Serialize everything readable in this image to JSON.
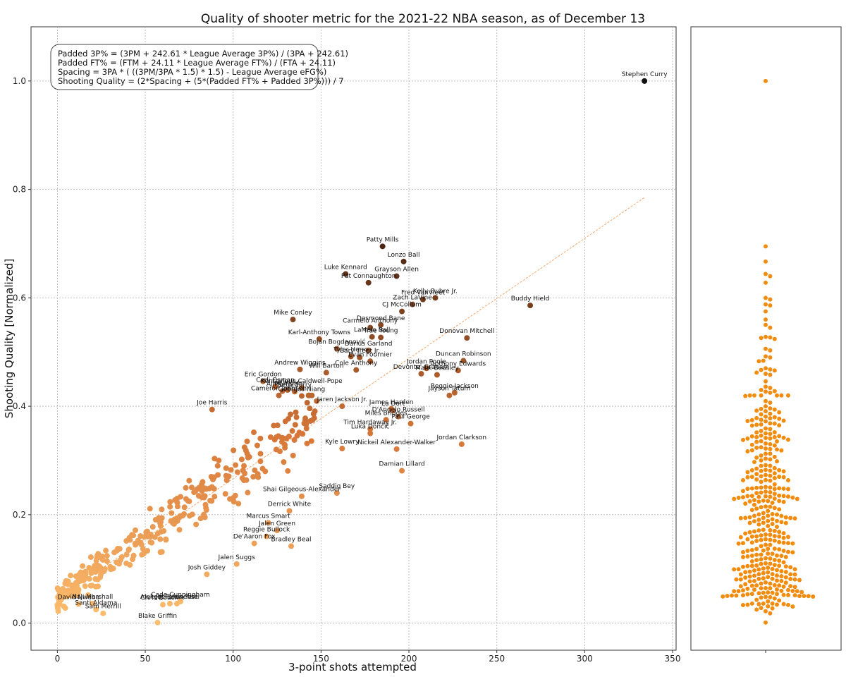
{
  "chart_data": {
    "type": "scatter",
    "title": "Quality of shooter metric for the 2021-22 NBA season, as of December 13",
    "xlabel": "3-point shots attempted",
    "ylabel": "Shooting Quality [Normalized]",
    "xlim": [
      -15,
      352
    ],
    "ylim": [
      -0.05,
      1.1
    ],
    "xticks": [
      "0",
      "50",
      "100",
      "150",
      "200",
      "250",
      "300",
      "350"
    ],
    "yticks": [
      "0.0",
      "0.2",
      "0.4",
      "0.6",
      "0.8",
      "1.0"
    ],
    "grid": true,
    "formulas": [
      "Padded 3P% = (3PM + 242.61 * League Average 3P%) / (3PA + 242.61)",
      "Padded FT% = (FTM + 24.11 * League Average FT%) / (FTA + 24.11)",
      "Spacing = 3PA * ( ((3PM/3PA * 1.5) * 1.5) - League Average eFG%)",
      "Shooting Quality = (2*Spacing + (5*(Padded FT% + Padded 3P%))) / 7"
    ],
    "trend_line": {
      "x": [
        0,
        334
      ],
      "y": [
        0.045,
        0.785
      ]
    },
    "labeled_points": [
      {
        "name": "Stephen Curry",
        "x": 334,
        "y": 1.0
      },
      {
        "name": "Patty Mills",
        "x": 185,
        "y": 0.695
      },
      {
        "name": "Lonzo Ball",
        "x": 197,
        "y": 0.667
      },
      {
        "name": "Luke Kennard",
        "x": 164,
        "y": 0.644
      },
      {
        "name": "Grayson Allen",
        "x": 193,
        "y": 0.64
      },
      {
        "name": "Pat Connaughton",
        "x": 177,
        "y": 0.628
      },
      {
        "name": "Kelly Oubre Jr.",
        "x": 215,
        "y": 0.6
      },
      {
        "name": "Fred VanVleet",
        "x": 208,
        "y": 0.597
      },
      {
        "name": "Zach LaVine",
        "x": 202,
        "y": 0.588
      },
      {
        "name": "CJ McCollum",
        "x": 196,
        "y": 0.575
      },
      {
        "name": "Buddy Hield",
        "x": 269,
        "y": 0.586
      },
      {
        "name": "Mike Conley",
        "x": 134,
        "y": 0.56
      },
      {
        "name": "Desmond Bane",
        "x": 184,
        "y": 0.55
      },
      {
        "name": "Carmelo Anthony",
        "x": 178,
        "y": 0.545
      },
      {
        "name": "Trae Young",
        "x": 184,
        "y": 0.527
      },
      {
        "name": "LaMelo Ball",
        "x": 179,
        "y": 0.528
      },
      {
        "name": "Karl-Anthony Towns",
        "x": 149,
        "y": 0.524
      },
      {
        "name": "Donovan Mitchell",
        "x": 233,
        "y": 0.526
      },
      {
        "name": "Bojan Bogdanović",
        "x": 159,
        "y": 0.506
      },
      {
        "name": "Darius Garland",
        "x": 177,
        "y": 0.503
      },
      {
        "name": "Tyler Herro",
        "x": 167,
        "y": 0.492
      },
      {
        "name": "Gary Trent Jr.",
        "x": 172,
        "y": 0.49
      },
      {
        "name": "Evan Fournier",
        "x": 178,
        "y": 0.483
      },
      {
        "name": "Duncan Robinson",
        "x": 231,
        "y": 0.484
      },
      {
        "name": "Jordan Poole",
        "x": 210,
        "y": 0.47
      },
      {
        "name": "Anthony Edwards",
        "x": 228,
        "y": 0.466
      },
      {
        "name": "Devonte' Graham",
        "x": 207,
        "y": 0.46
      },
      {
        "name": "Malik Beasley",
        "x": 216,
        "y": 0.458
      },
      {
        "name": "Andrew Wiggins",
        "x": 138,
        "y": 0.468
      },
      {
        "name": "Will Barton",
        "x": 153,
        "y": 0.462
      },
      {
        "name": "Cole Anthony",
        "x": 170,
        "y": 0.467
      },
      {
        "name": "Eric Gordon",
        "x": 117,
        "y": 0.446
      },
      {
        "name": "Cedi Osman",
        "x": 124,
        "y": 0.436
      },
      {
        "name": "Kentavious Caldwell-Pope",
        "x": 139,
        "y": 0.434
      },
      {
        "name": "Al Horford",
        "x": 128,
        "y": 0.428
      },
      {
        "name": "Joe Ingles",
        "x": 131,
        "y": 0.43
      },
      {
        "name": "Seth Curry",
        "x": 135,
        "y": 0.427
      },
      {
        "name": "Cameron Johnson",
        "x": 126,
        "y": 0.42
      },
      {
        "name": "Georges Niang",
        "x": 139,
        "y": 0.419
      },
      {
        "name": "Reggie Jackson",
        "x": 226,
        "y": 0.425
      },
      {
        "name": "Jayson Tatum",
        "x": 223,
        "y": 0.42
      },
      {
        "name": "Joe Harris",
        "x": 88,
        "y": 0.394
      },
      {
        "name": "Jaren Jackson Jr.",
        "x": 162,
        "y": 0.4
      },
      {
        "name": "James Harden",
        "x": 190,
        "y": 0.395
      },
      {
        "name": "Lu Dort",
        "x": 191,
        "y": 0.392
      },
      {
        "name": "D'Angelo Russell",
        "x": 194,
        "y": 0.381
      },
      {
        "name": "Miles Bridges",
        "x": 187,
        "y": 0.375
      },
      {
        "name": "Paul George",
        "x": 201,
        "y": 0.368
      },
      {
        "name": "Tim Hardaway Jr.",
        "x": 178,
        "y": 0.358
      },
      {
        "name": "Luka Dončić",
        "x": 178,
        "y": 0.35
      },
      {
        "name": "Jordan Clarkson",
        "x": 230,
        "y": 0.33
      },
      {
        "name": "Kyle Lowry",
        "x": 162,
        "y": 0.322
      },
      {
        "name": "Nickeil Alexander-Walker",
        "x": 193,
        "y": 0.321
      },
      {
        "name": "Damian Lillard",
        "x": 196,
        "y": 0.281
      },
      {
        "name": "Saddiq Bey",
        "x": 159,
        "y": 0.24
      },
      {
        "name": "Shai Gilgeous-Alexander",
        "x": 139,
        "y": 0.234
      },
      {
        "name": "Derrick White",
        "x": 132,
        "y": 0.207
      },
      {
        "name": "Marcus Smart",
        "x": 120,
        "y": 0.185
      },
      {
        "name": "Jalen Green",
        "x": 125,
        "y": 0.171
      },
      {
        "name": "Reggie Bullock",
        "x": 119,
        "y": 0.16
      },
      {
        "name": "De'Aaron Fox",
        "x": 112,
        "y": 0.147
      },
      {
        "name": "Bradley Beal",
        "x": 133,
        "y": 0.142
      },
      {
        "name": "Jalen Suggs",
        "x": 102,
        "y": 0.109
      },
      {
        "name": "Josh Giddey",
        "x": 85,
        "y": 0.09
      },
      {
        "name": "Aleksej Pokusevski",
        "x": 64,
        "y": 0.036
      },
      {
        "name": "Chris Boucher",
        "x": 60,
        "y": 0.034
      },
      {
        "name": "Jae'Sean Tate",
        "x": 68,
        "y": 0.036
      },
      {
        "name": "Cade Cunningham",
        "x": 70,
        "y": 0.04
      },
      {
        "name": "David Nwaba",
        "x": 12,
        "y": 0.035
      },
      {
        "name": "Naji Marshall",
        "x": 20,
        "y": 0.036
      },
      {
        "name": "Santi Aldama",
        "x": 22,
        "y": 0.025
      },
      {
        "name": "Sam Merrill",
        "x": 26,
        "y": 0.018
      },
      {
        "name": "Blake Griffin",
        "x": 57,
        "y": 0.001
      }
    ],
    "swarm_panel": {
      "type": "swarm",
      "series": "Shooting Quality [Normalized]",
      "color": "#f28c0f"
    },
    "colors": {
      "low": "#fdbf6f",
      "high": "#4a2512",
      "curry": "#111111",
      "trend": "#f5a56a",
      "swarm": "#f28c0f",
      "grid": "#b0b0b0"
    }
  }
}
